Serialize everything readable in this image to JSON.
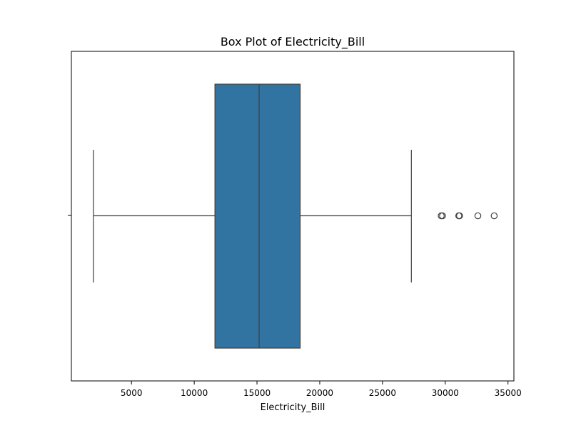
{
  "chart_data": {
    "type": "box",
    "orientation": "horizontal",
    "title": "Box Plot of Electricity_Bill",
    "xlabel": "Electricity_Bill",
    "ylabel": "",
    "xlim": [
      211,
      35471
    ],
    "xticks": [
      5000,
      10000,
      15000,
      20000,
      25000,
      30000,
      35000
    ],
    "xtick_labels": [
      "5000",
      "10000",
      "15000",
      "20000",
      "25000",
      "30000",
      "35000"
    ],
    "grid": false,
    "box": {
      "whisker_low": 1970,
      "q1": 11650,
      "median": 15170,
      "q3": 18440,
      "whisker_high": 27300,
      "outliers": [
        29680,
        29780,
        31080,
        31140,
        32600,
        33900
      ]
    },
    "colors": {
      "box_fill": "#3274a1",
      "line": "#3f3f3f",
      "axes": "#000000"
    }
  }
}
